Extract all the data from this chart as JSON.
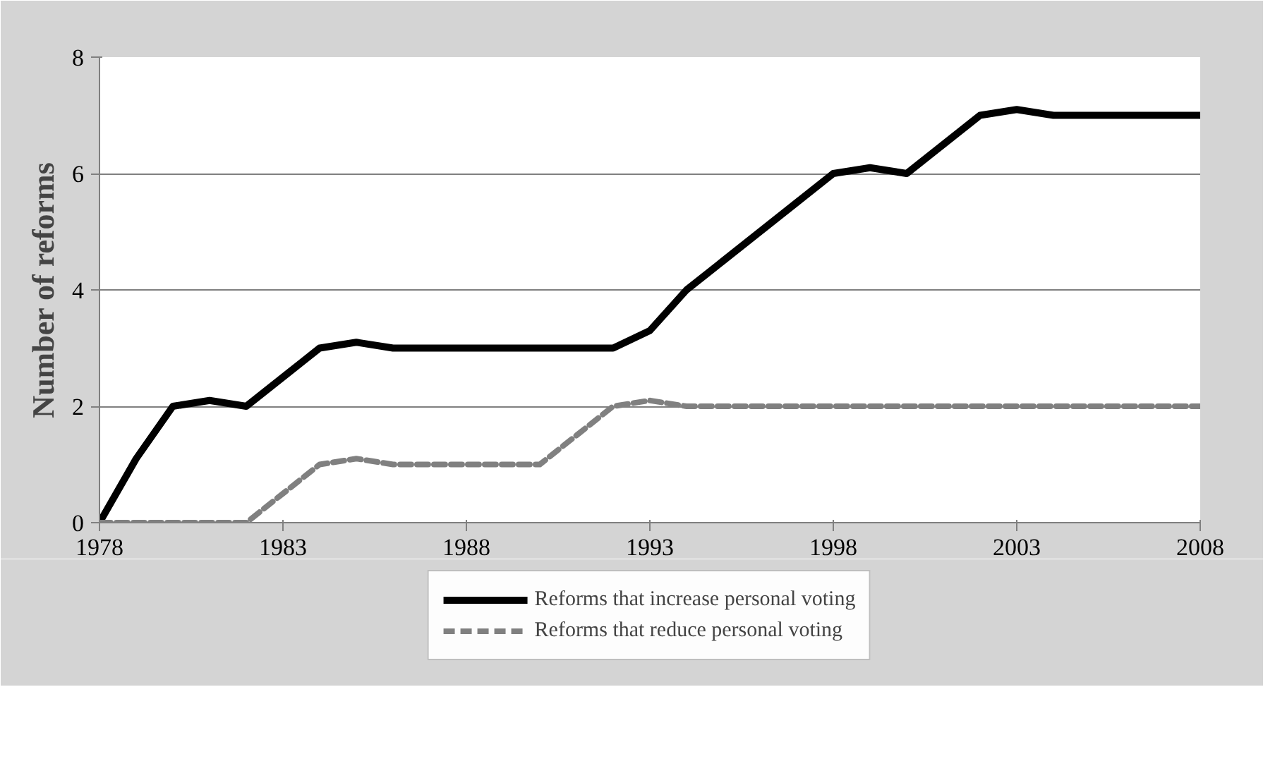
{
  "chart_data": {
    "type": "line",
    "ylabel": "Number of reforms",
    "xlim": [
      1978,
      2008
    ],
    "ylim": [
      0,
      8
    ],
    "xticks": [
      1978,
      1983,
      1988,
      1993,
      1998,
      2003,
      2008
    ],
    "yticks": [
      0,
      2,
      4,
      6,
      8
    ],
    "grid": "y",
    "legend": "bottom",
    "x": [
      1978,
      1979,
      1980,
      1981,
      1982,
      1983,
      1984,
      1985,
      1986,
      1987,
      1988,
      1989,
      1990,
      1991,
      1992,
      1993,
      1994,
      1995,
      1996,
      1997,
      1998,
      1999,
      2000,
      2001,
      2002,
      2003,
      2004,
      2005,
      2006,
      2007,
      2008
    ],
    "series": [
      {
        "name": "Reforms that increase personal voting",
        "color": "#000000",
        "line_style": "solid",
        "values": [
          0,
          1.1,
          2,
          2.1,
          2,
          2.5,
          3,
          3.1,
          3,
          3,
          3,
          3,
          3,
          3,
          3,
          3.3,
          4,
          4.5,
          5,
          5.5,
          6,
          6.1,
          6,
          6.5,
          7,
          7.1,
          7,
          7,
          7,
          7,
          7
        ]
      },
      {
        "name": "Reforms that reduce personal voting",
        "color": "#808080",
        "line_style": "dashed",
        "values": [
          0,
          0,
          0,
          0,
          0,
          0.5,
          1,
          1.1,
          1,
          1,
          1,
          1,
          1,
          1.5,
          2,
          2.1,
          2,
          2,
          2,
          2,
          2,
          2,
          2,
          2,
          2,
          2,
          2,
          2,
          2,
          2,
          2
        ]
      }
    ]
  }
}
